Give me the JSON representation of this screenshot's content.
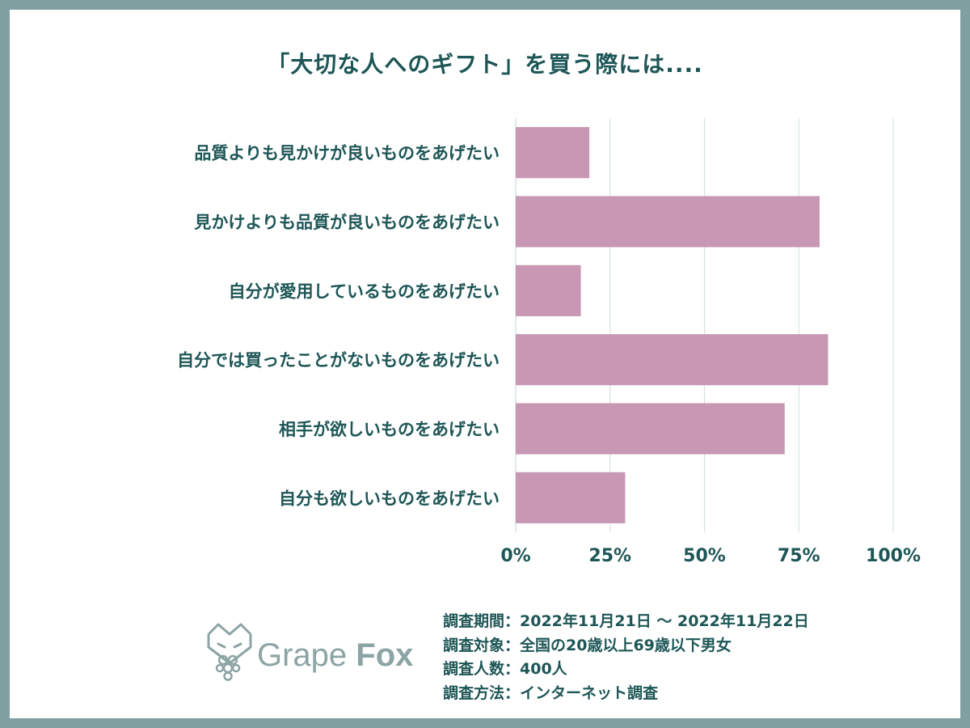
{
  "title": "「大切な人へのギフト」を買う際には....",
  "chart_data": {
    "type": "bar",
    "orientation": "horizontal",
    "title": "「大切な人へのギフト」を買う際には....",
    "categories": [
      "品質よりも見かけが良いものをあげたい",
      "見かけよりも品質が良いものをあげたい",
      "自分が愛用しているものをあげたい",
      "自分では買ったことがないものをあげたい",
      "相手が欲しいものをあげたい",
      "自分も欲しいものをあげたい"
    ],
    "values": [
      19.5,
      80.5,
      17.25,
      82.75,
      71.25,
      29
    ],
    "xlim": [
      0,
      100
    ],
    "ticks": [
      "0%",
      "25%",
      "50%",
      "75%",
      "100%"
    ],
    "tick_values": [
      0,
      25,
      50,
      75,
      100
    ],
    "grid": true,
    "bar_color": "#c897b4",
    "grid_color": "#d8e2e2",
    "text_color": "#1e5656"
  },
  "brand": {
    "name_light": "Grape",
    "name_bold": "Fox"
  },
  "survey_info": [
    "調査期間：2022年11月21日 ～ 2022年11月22日",
    "調査対象：全国の20歳以上69歳以下男女",
    "調査人数：400人",
    "調査方法：インターネット調査"
  ],
  "colors": {
    "frame": "#7f9fa1",
    "background": "#ffffff",
    "logo": "#8ca4a4"
  }
}
